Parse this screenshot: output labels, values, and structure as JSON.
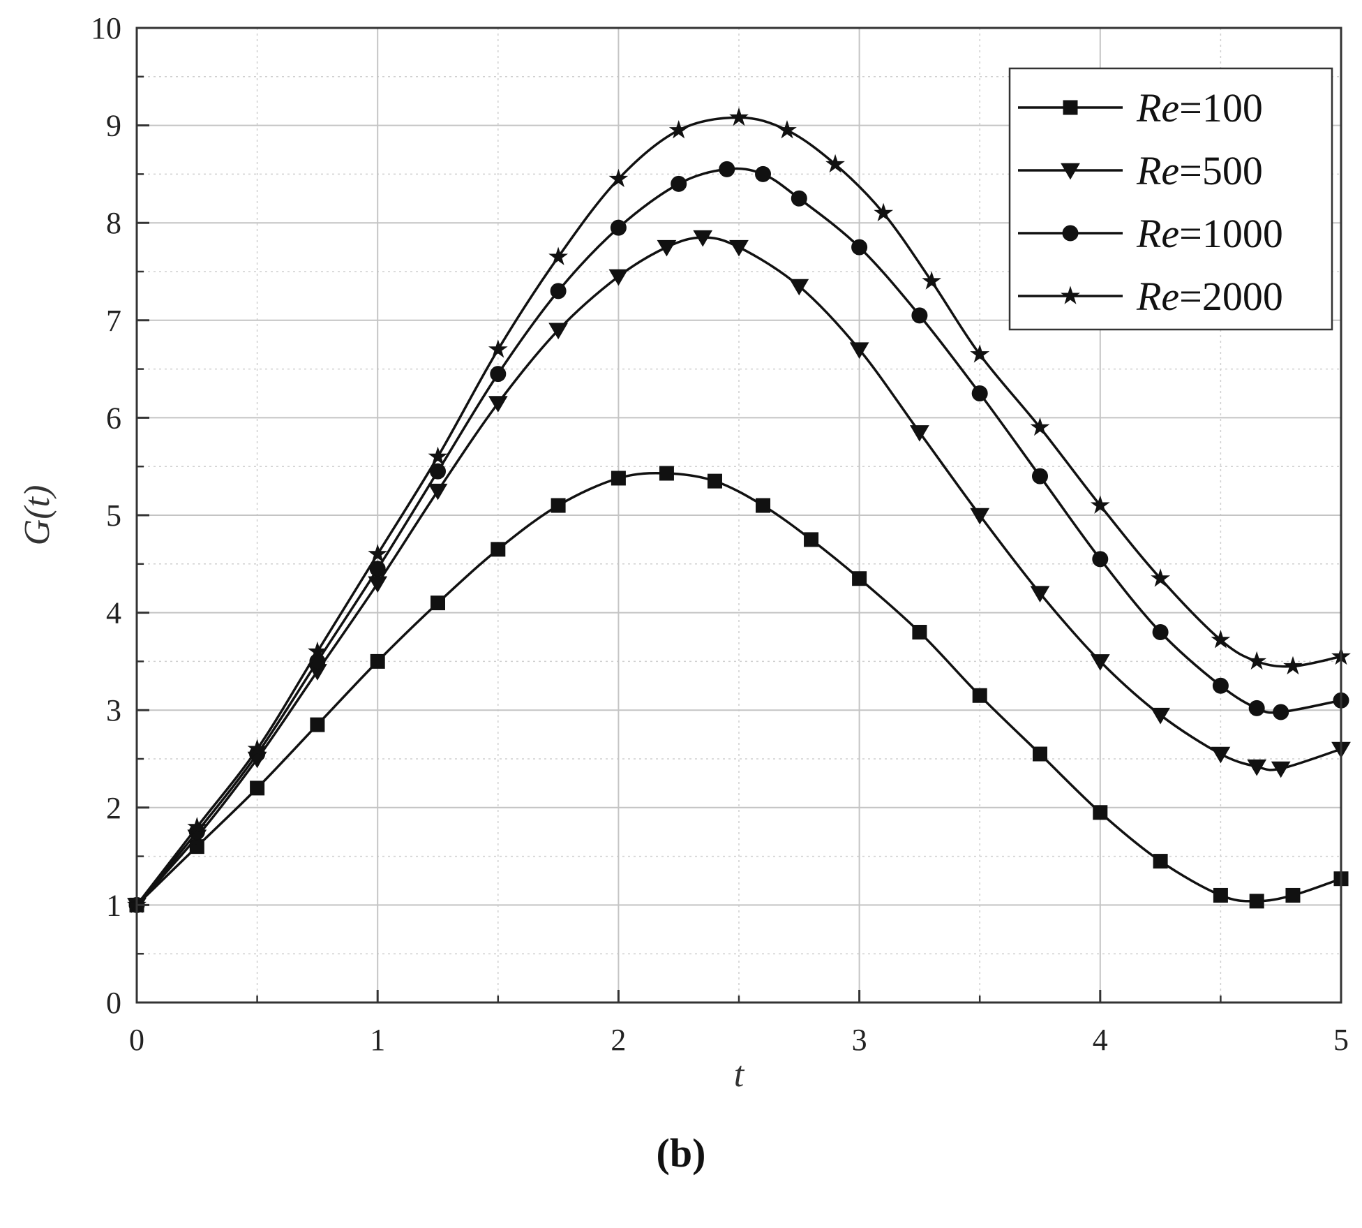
{
  "panel_label": "(b)",
  "chart_data": {
    "type": "line",
    "xlabel": "t",
    "ylabel": "G(t)",
    "xlim": [
      0,
      5
    ],
    "ylim": [
      0,
      10
    ],
    "xticks": [
      0,
      1,
      2,
      3,
      4,
      5
    ],
    "yticks": [
      0,
      1,
      2,
      3,
      4,
      5,
      6,
      7,
      8,
      9,
      10
    ],
    "grid": true,
    "legend_position": "top-right",
    "series": [
      {
        "name": "Re=100",
        "name_italic": "Re",
        "name_rest": "=100",
        "marker": "square",
        "x": [
          0,
          0.25,
          0.5,
          0.75,
          1.0,
          1.25,
          1.5,
          1.75,
          2.0,
          2.2,
          2.4,
          2.6,
          2.8,
          3.0,
          3.25,
          3.5,
          3.75,
          4.0,
          4.25,
          4.5,
          4.65,
          4.8,
          5.0
        ],
        "y": [
          1.0,
          1.6,
          2.2,
          2.85,
          3.5,
          4.1,
          4.65,
          5.1,
          5.38,
          5.43,
          5.35,
          5.1,
          4.75,
          4.35,
          3.8,
          3.15,
          2.55,
          1.95,
          1.45,
          1.1,
          1.04,
          1.1,
          1.27
        ]
      },
      {
        "name": "Re=500",
        "name_italic": "Re",
        "name_rest": "=500",
        "marker": "triangle-down",
        "x": [
          0,
          0.25,
          0.5,
          0.75,
          1.0,
          1.25,
          1.5,
          1.75,
          2.0,
          2.2,
          2.35,
          2.5,
          2.75,
          3.0,
          3.25,
          3.5,
          3.75,
          4.0,
          4.25,
          4.5,
          4.65,
          4.75,
          5.0
        ],
        "y": [
          1.0,
          1.7,
          2.5,
          3.4,
          4.3,
          5.25,
          6.15,
          6.9,
          7.45,
          7.75,
          7.85,
          7.75,
          7.35,
          6.7,
          5.85,
          5.0,
          4.2,
          3.5,
          2.95,
          2.55,
          2.42,
          2.4,
          2.6
        ]
      },
      {
        "name": "Re=1000",
        "name_italic": "Re",
        "name_rest": "=1000",
        "marker": "circle",
        "x": [
          0,
          0.25,
          0.5,
          0.75,
          1.0,
          1.25,
          1.5,
          1.75,
          2.0,
          2.25,
          2.45,
          2.6,
          2.75,
          3.0,
          3.25,
          3.5,
          3.75,
          4.0,
          4.25,
          4.5,
          4.65,
          4.75,
          5.0
        ],
        "y": [
          1.0,
          1.75,
          2.55,
          3.5,
          4.45,
          5.45,
          6.45,
          7.3,
          7.95,
          8.4,
          8.55,
          8.5,
          8.25,
          7.75,
          7.05,
          6.25,
          5.4,
          4.55,
          3.8,
          3.25,
          3.02,
          2.98,
          3.1
        ]
      },
      {
        "name": "Re=2000",
        "name_italic": "Re",
        "name_rest": "=2000",
        "marker": "star",
        "x": [
          0,
          0.25,
          0.5,
          0.75,
          1.0,
          1.25,
          1.5,
          1.75,
          2.0,
          2.25,
          2.5,
          2.7,
          2.9,
          3.1,
          3.3,
          3.5,
          3.75,
          4.0,
          4.25,
          4.5,
          4.65,
          4.8,
          5.0
        ],
        "y": [
          1.0,
          1.8,
          2.6,
          3.6,
          4.6,
          5.6,
          6.7,
          7.65,
          8.45,
          8.95,
          9.08,
          8.95,
          8.6,
          8.1,
          7.4,
          6.65,
          5.9,
          5.1,
          4.35,
          3.72,
          3.5,
          3.45,
          3.55
        ]
      }
    ]
  }
}
